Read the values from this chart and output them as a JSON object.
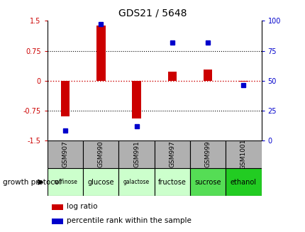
{
  "title": "GDS21 / 5648",
  "samples": [
    "GSM907",
    "GSM990",
    "GSM991",
    "GSM997",
    "GSM999",
    "GSM1001"
  ],
  "conditions": [
    "raffinose",
    "glucose",
    "galactose",
    "fructose",
    "sucrose",
    "ethanol"
  ],
  "condition_colors": [
    "#ccffcc",
    "#ccffcc",
    "#ccffcc",
    "#ccffcc",
    "#55dd55",
    "#22cc22"
  ],
  "log_ratios": [
    -0.9,
    1.38,
    -0.95,
    0.22,
    0.28,
    -0.03
  ],
  "percentile_ranks": [
    8,
    97,
    12,
    82,
    82,
    46
  ],
  "ylim_left": [
    -1.5,
    1.5
  ],
  "ylim_right": [
    0,
    100
  ],
  "yticks_left": [
    -1.5,
    -0.75,
    0,
    0.75,
    1.5
  ],
  "yticks_right": [
    0,
    25,
    50,
    75,
    100
  ],
  "bar_color": "#cc0000",
  "dot_color": "#0000cc",
  "zero_line_color": "#cc0000",
  "label_color_left": "#cc0000",
  "label_color_right": "#0000cc",
  "header_bg": "#b0b0b0",
  "growth_protocol_label": "growth protocol",
  "legend_bar_label": "log ratio",
  "legend_dot_label": "percentile rank within the sample",
  "bar_width": 0.25,
  "dot_size": 5
}
